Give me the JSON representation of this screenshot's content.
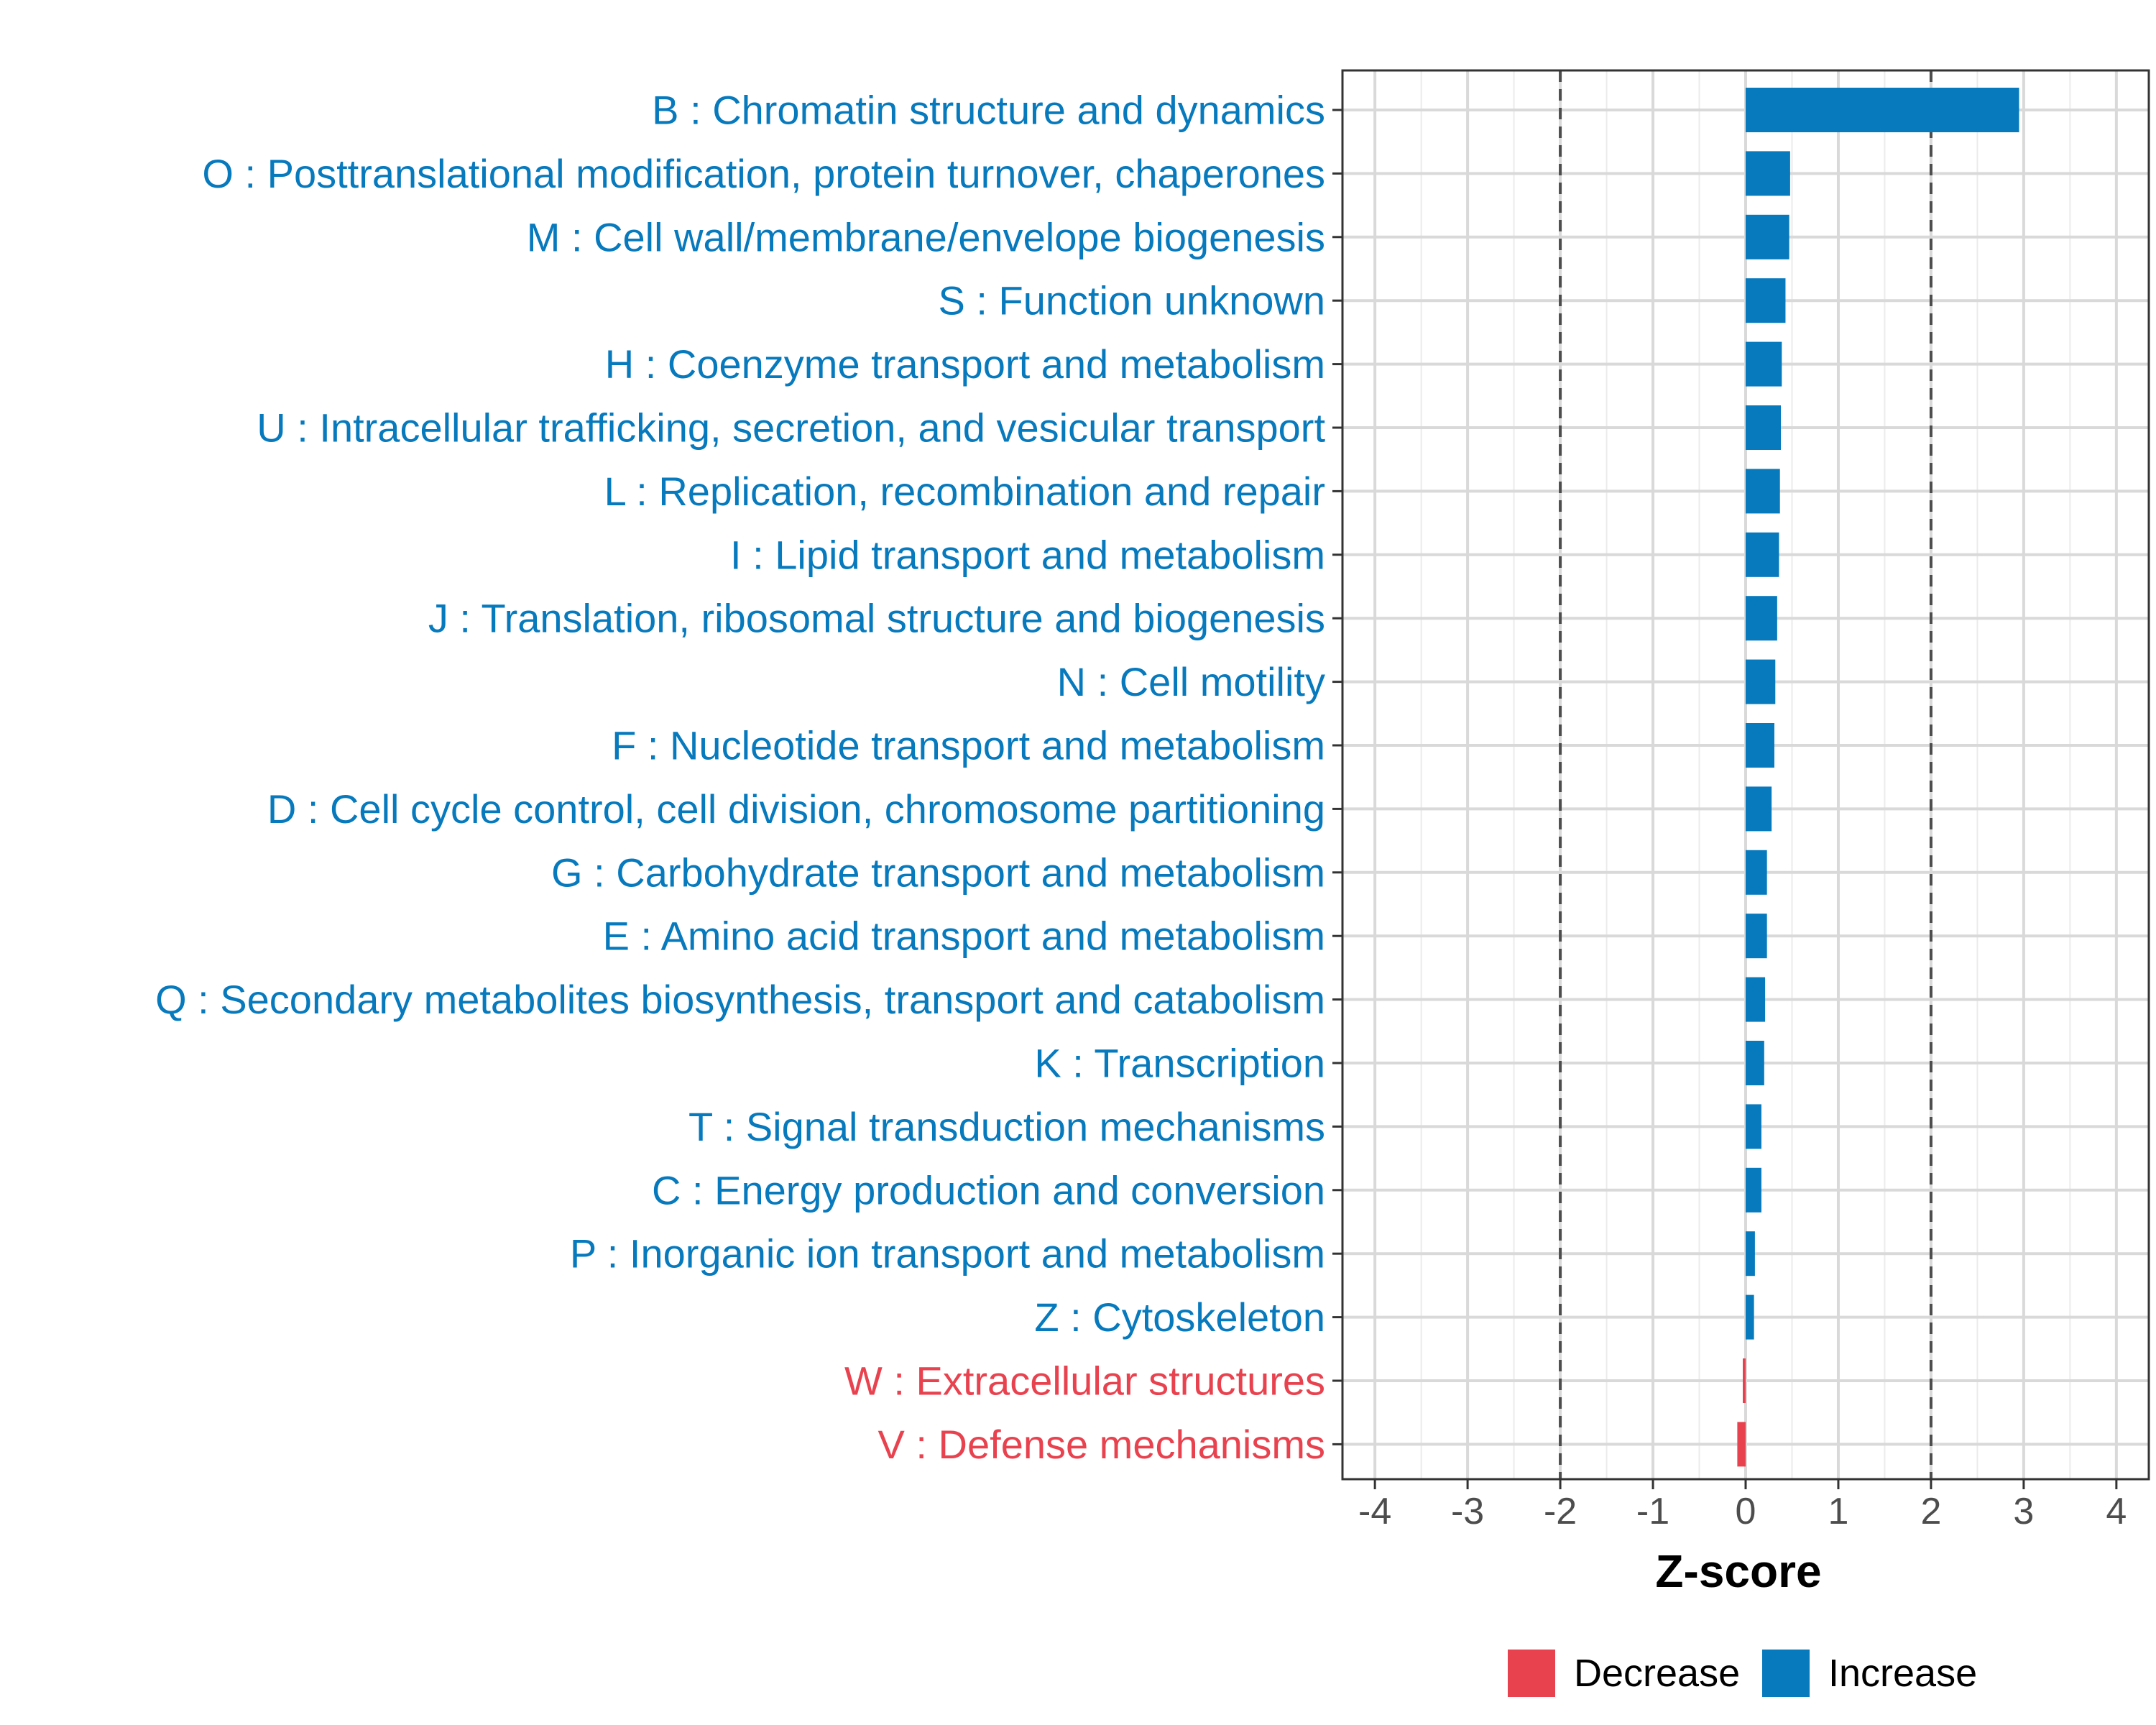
{
  "chart_data": {
    "type": "bar",
    "orientation": "horizontal",
    "xlabel": "Z-score",
    "ylabel": "",
    "xlim": [
      -4.35,
      4.35
    ],
    "xticks": [
      -4,
      -3,
      -2,
      -1,
      0,
      1,
      2,
      3,
      4
    ],
    "reference_lines": [
      -2,
      2
    ],
    "grid": true,
    "legend": {
      "position": "bottom",
      "entries": [
        {
          "name": "Decrease",
          "color": "#E8424F"
        },
        {
          "name": "Increase",
          "color": "#0779BD"
        }
      ]
    },
    "bars": [
      {
        "label": "B : Chromatin structure and dynamics",
        "value": 2.95,
        "direction": "Increase"
      },
      {
        "label": "O : Posttranslational modification, protein turnover, chaperones",
        "value": 0.48,
        "direction": "Increase"
      },
      {
        "label": "M : Cell wall/membrane/envelope biogenesis",
        "value": 0.47,
        "direction": "Increase"
      },
      {
        "label": "S : Function unknown",
        "value": 0.43,
        "direction": "Increase"
      },
      {
        "label": "H : Coenzyme transport and metabolism",
        "value": 0.39,
        "direction": "Increase"
      },
      {
        "label": "U : Intracellular trafficking, secretion, and vesicular transport",
        "value": 0.38,
        "direction": "Increase"
      },
      {
        "label": "L : Replication, recombination and repair",
        "value": 0.37,
        "direction": "Increase"
      },
      {
        "label": "I : Lipid transport and metabolism",
        "value": 0.36,
        "direction": "Increase"
      },
      {
        "label": "J : Translation, ribosomal structure and biogenesis",
        "value": 0.34,
        "direction": "Increase"
      },
      {
        "label": "N : Cell motility",
        "value": 0.32,
        "direction": "Increase"
      },
      {
        "label": "F : Nucleotide transport and metabolism",
        "value": 0.31,
        "direction": "Increase"
      },
      {
        "label": "D : Cell cycle control, cell division, chromosome partitioning",
        "value": 0.28,
        "direction": "Increase"
      },
      {
        "label": "G : Carbohydrate transport and metabolism",
        "value": 0.23,
        "direction": "Increase"
      },
      {
        "label": "E : Amino acid transport and metabolism",
        "value": 0.23,
        "direction": "Increase"
      },
      {
        "label": "Q : Secondary metabolites biosynthesis, transport and catabolism",
        "value": 0.21,
        "direction": "Increase"
      },
      {
        "label": "K : Transcription",
        "value": 0.2,
        "direction": "Increase"
      },
      {
        "label": "T : Signal transduction mechanisms",
        "value": 0.17,
        "direction": "Increase"
      },
      {
        "label": "C : Energy production and conversion",
        "value": 0.17,
        "direction": "Increase"
      },
      {
        "label": "P : Inorganic ion transport and metabolism",
        "value": 0.1,
        "direction": "Increase"
      },
      {
        "label": "Z : Cytoskeleton",
        "value": 0.09,
        "direction": "Increase"
      },
      {
        "label": "W : Extracellular structures",
        "value": -0.02,
        "direction": "Decrease"
      },
      {
        "label": "V : Defense mechanisms",
        "value": -0.09,
        "direction": "Decrease"
      }
    ]
  }
}
